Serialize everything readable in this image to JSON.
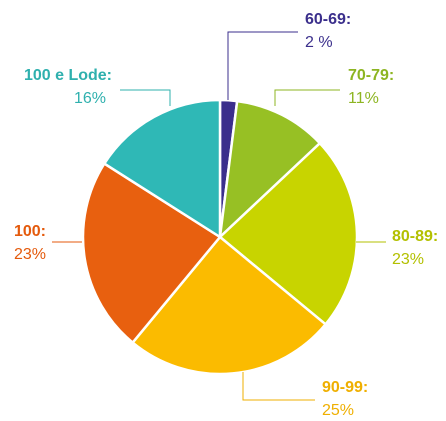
{
  "chart_data": {
    "type": "pie",
    "categories": [
      "60-69:",
      "70-79:",
      "80-89:",
      "90-99:",
      "100:",
      "100 e Lode:"
    ],
    "values": [
      2,
      11,
      23,
      25,
      23,
      16
    ],
    "value_labels": [
      "2 %",
      "11%",
      "23%",
      "25%",
      "23%",
      "16%"
    ],
    "colors": [
      "#3b2f8c",
      "#97c024",
      "#c8d400",
      "#fbbb00",
      "#e8600f",
      "#2fb8b6"
    ],
    "label_colors": [
      "#3b2f8c",
      "#8db522",
      "#b3c000",
      "#efaf00",
      "#e45a0c",
      "#2fb0ae"
    ]
  }
}
